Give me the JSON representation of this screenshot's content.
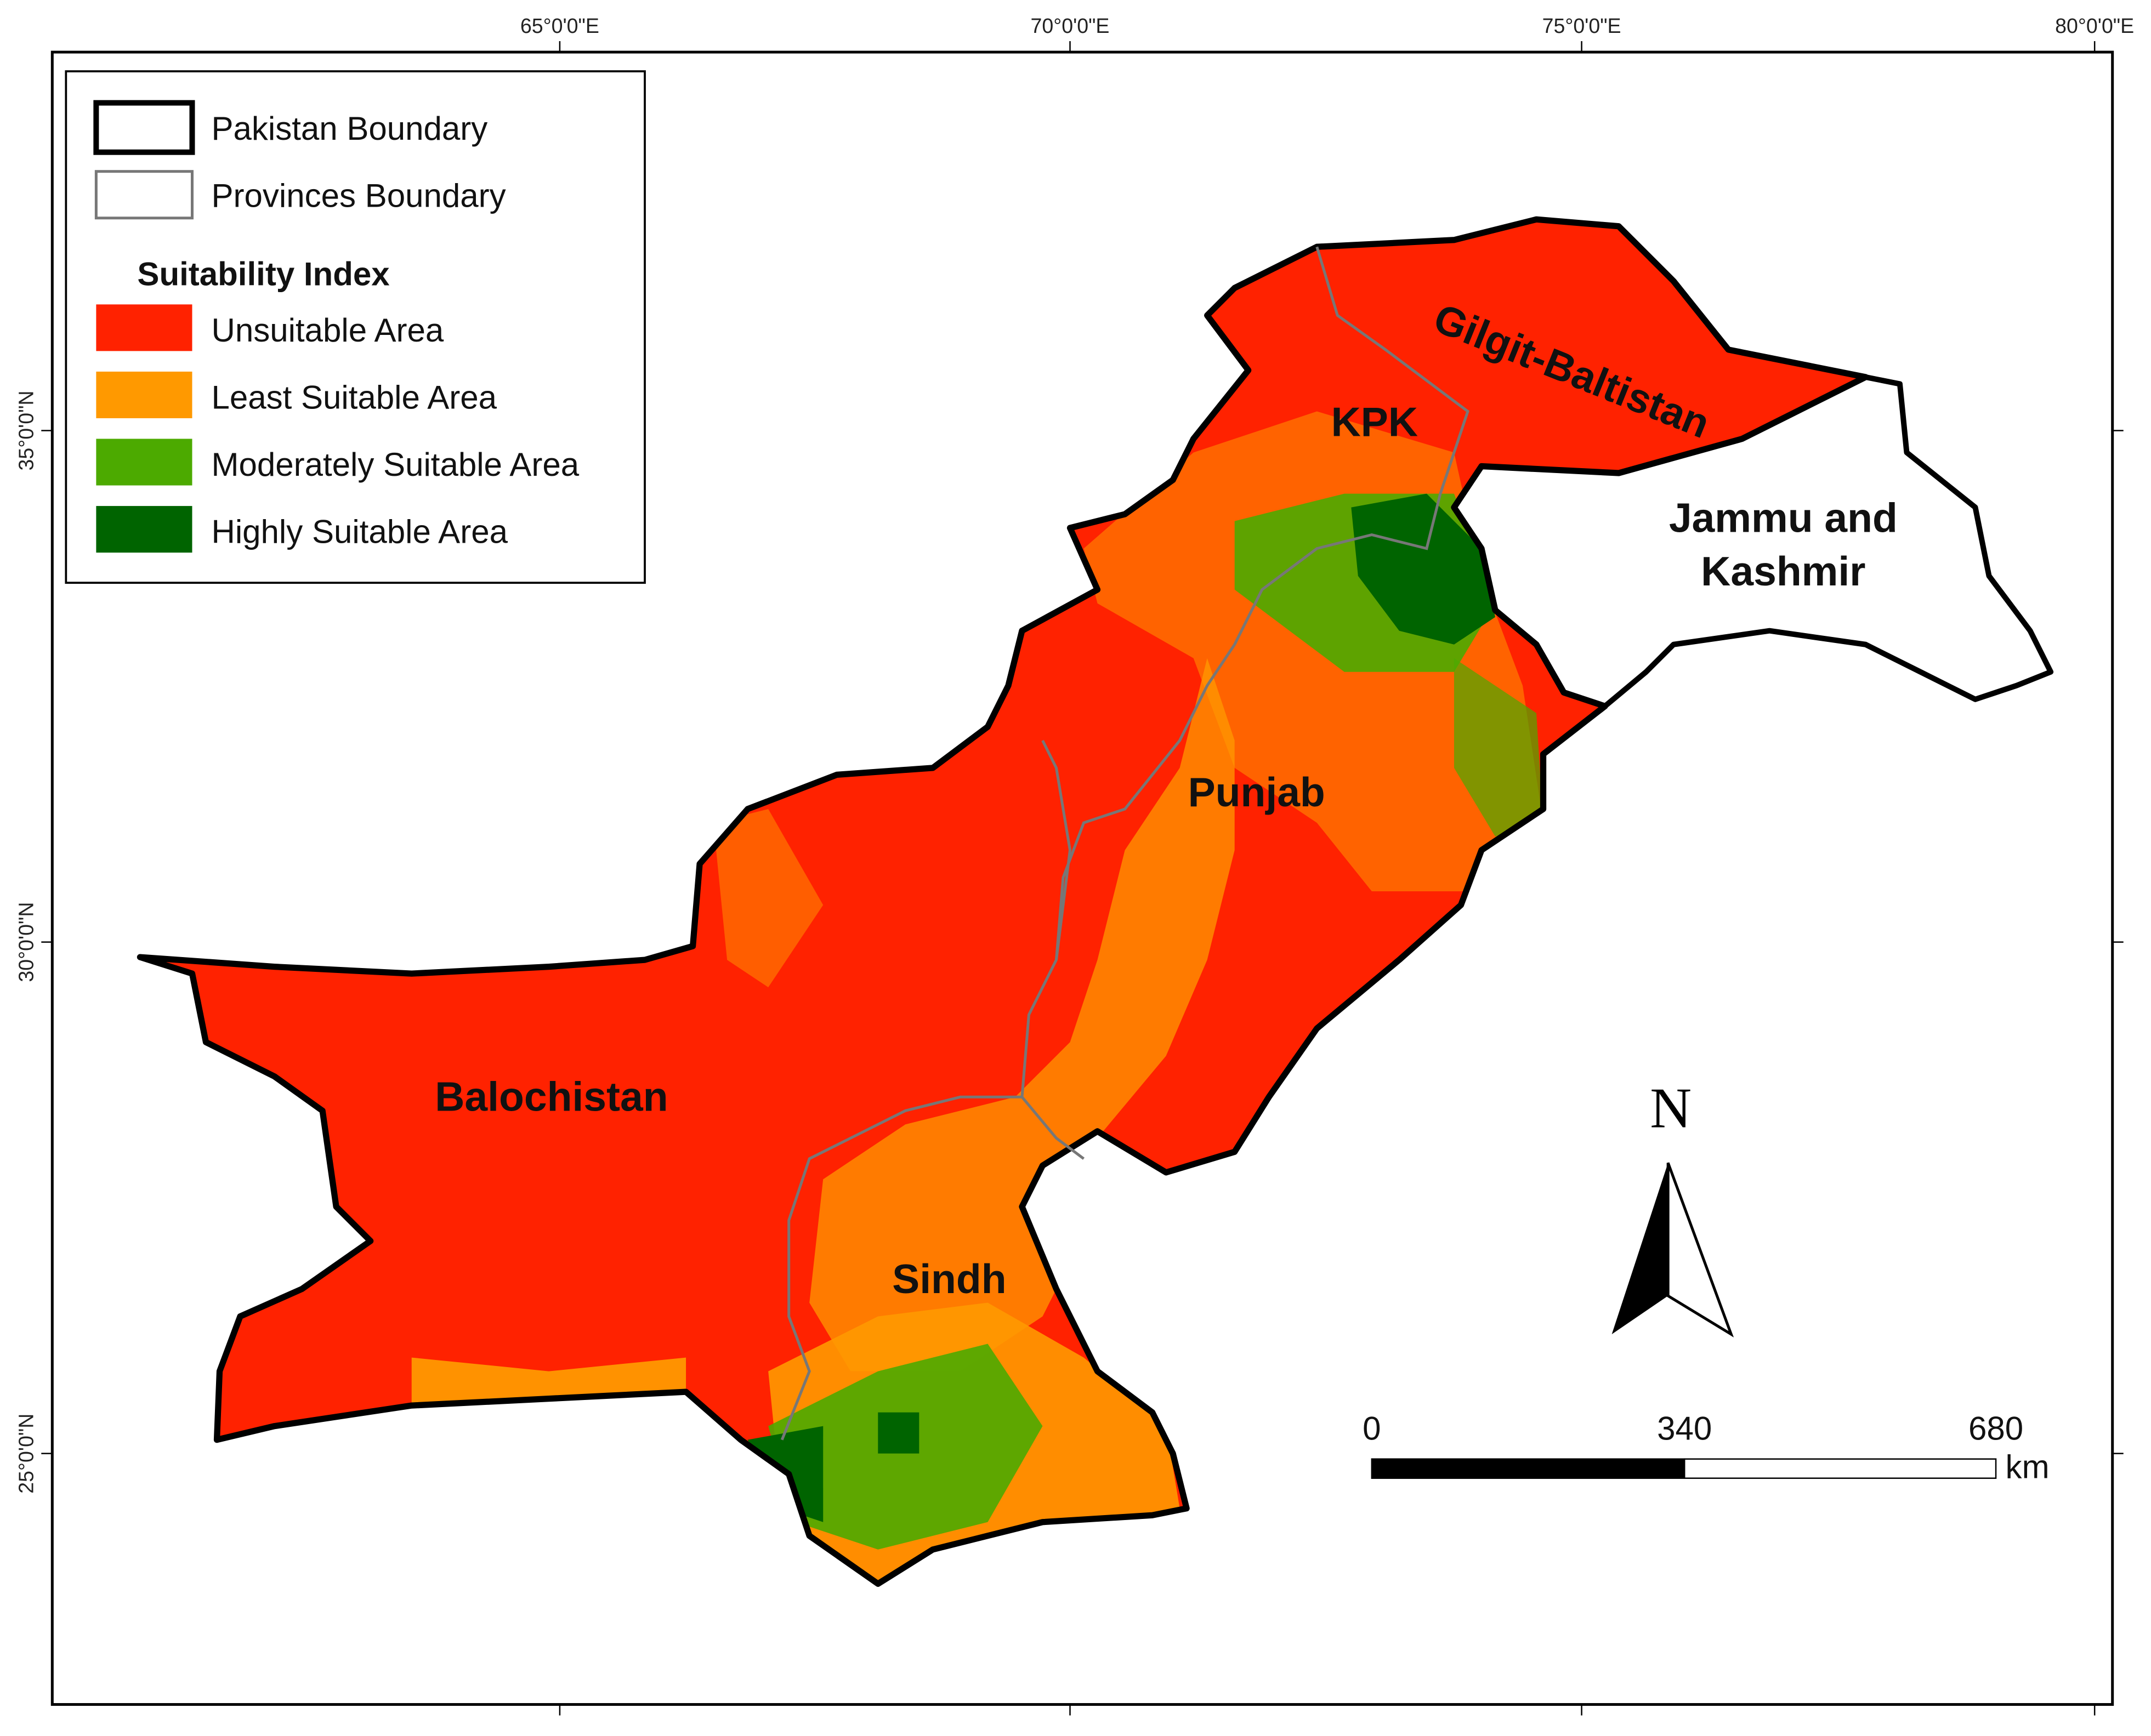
{
  "axes": {
    "longitude": [
      "65°0'0\"E",
      "70°0'0\"E",
      "75°0'0\"E",
      "80°0'0\"E"
    ],
    "latitude": [
      "35°0'0\"N",
      "30°0'0\"N",
      "25°0'0\"N"
    ]
  },
  "legend": {
    "boundaries": [
      "Pakistan Boundary",
      "Provinces Boundary"
    ],
    "title": "Suitability Index",
    "items": [
      {
        "label": "Unsuitable Area",
        "color": "#ff2200"
      },
      {
        "label": "Least Suitable Area",
        "color": "#ff9900"
      },
      {
        "label": "Moderately Suitable Area",
        "color": "#4caa00"
      },
      {
        "label": "Highly Suitable Area",
        "color": "#006400"
      }
    ]
  },
  "regions": [
    "Gilgit-Baltistan",
    "KPK",
    "Jammu and",
    "Kashmir",
    "Punjab",
    "Balochistan",
    "Sindh"
  ],
  "north_arrow": "N",
  "scale_bar": {
    "labels": [
      "0",
      "340",
      "680"
    ],
    "unit": "km"
  }
}
